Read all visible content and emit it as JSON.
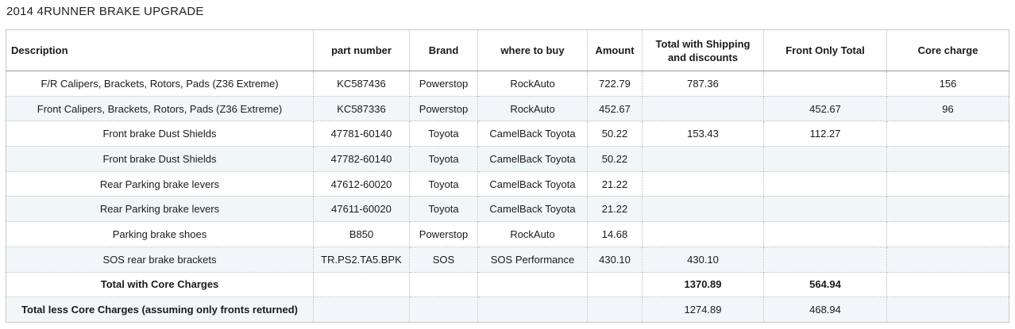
{
  "sheet": {
    "title": "2014 4RUNNER BRAKE UPGRADE"
  },
  "columns": [
    "Description",
    "part number",
    "Brand",
    "where to buy",
    "Amount",
    "Total with Shipping and discounts",
    "Front Only Total",
    "Core charge"
  ],
  "rows": [
    [
      "F/R Calipers, Brackets, Rotors, Pads (Z36 Extreme)",
      "KC587436",
      "Powerstop",
      "RockAuto",
      "722.79",
      "787.36",
      "",
      "156"
    ],
    [
      "Front Calipers, Brackets, Rotors, Pads (Z36 Extreme)",
      "KC587336",
      "Powerstop",
      "RockAuto",
      "452.67",
      "",
      "452.67",
      "96"
    ],
    [
      "Front brake Dust Shields",
      "47781-60140",
      "Toyota",
      "CamelBack Toyota",
      "50.22",
      "153.43",
      "112.27",
      ""
    ],
    [
      "Front brake Dust Shields",
      "47782-60140",
      "Toyota",
      "CamelBack Toyota",
      "50.22",
      "",
      "",
      ""
    ],
    [
      "Rear Parking brake levers",
      "47612-60020",
      "Toyota",
      "CamelBack Toyota",
      "21.22",
      "",
      "",
      ""
    ],
    [
      "Rear Parking brake levers",
      "47611-60020",
      "Toyota",
      "CamelBack Toyota",
      "21.22",
      "",
      "",
      ""
    ],
    [
      "Parking brake shoes",
      "B850",
      "Powerstop",
      "RockAuto",
      "14.68",
      "",
      "",
      ""
    ],
    [
      "SOS rear brake brackets",
      "TR.PS2.TA5.BPK",
      "SOS",
      "SOS Performance",
      "430.10",
      "430.10",
      "",
      ""
    ],
    [
      "Total with Core Charges",
      "",
      "",
      "",
      "",
      "1370.89",
      "564.94",
      ""
    ],
    [
      "Total less Core Charges (assuming only fronts returned)",
      "",
      "",
      "",
      "",
      "1274.89",
      "468.94",
      ""
    ]
  ]
}
